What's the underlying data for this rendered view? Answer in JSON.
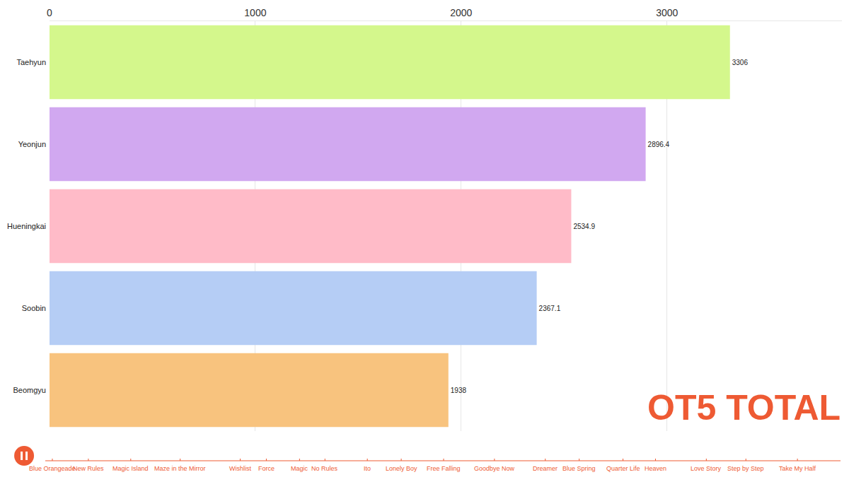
{
  "chart_data": {
    "type": "bar",
    "orientation": "horizontal",
    "categories": [
      "Taehyun",
      "Yeonjun",
      "Hueningkai",
      "Soobin",
      "Beomgyu"
    ],
    "values": [
      3306,
      2896.4,
      2534.9,
      2367.1,
      1938
    ],
    "colors": [
      "#d4f78c",
      "#d1a8f0",
      "#ffbbc8",
      "#b5cdf5",
      "#f8c37e"
    ],
    "xlim": [
      0,
      3850
    ],
    "xticks": [
      0,
      1000,
      2000,
      3000
    ],
    "grid": true,
    "data_labels": true,
    "annotations": [
      "OT5 TOTAL"
    ],
    "timeline": [
      "Blue Orangeade",
      "New Rules",
      "Magic Island",
      "Maze in the Mirror",
      "Wishlist",
      "Force",
      "Magic",
      "No Rules",
      "Ito",
      "Lonely Boy",
      "Free Falling",
      "Goodbye Now",
      "Dreamer",
      "Blue Spring",
      "Quarter Life",
      "Heaven",
      "Love Story",
      "Step by Step",
      "Take My Half"
    ]
  }
}
